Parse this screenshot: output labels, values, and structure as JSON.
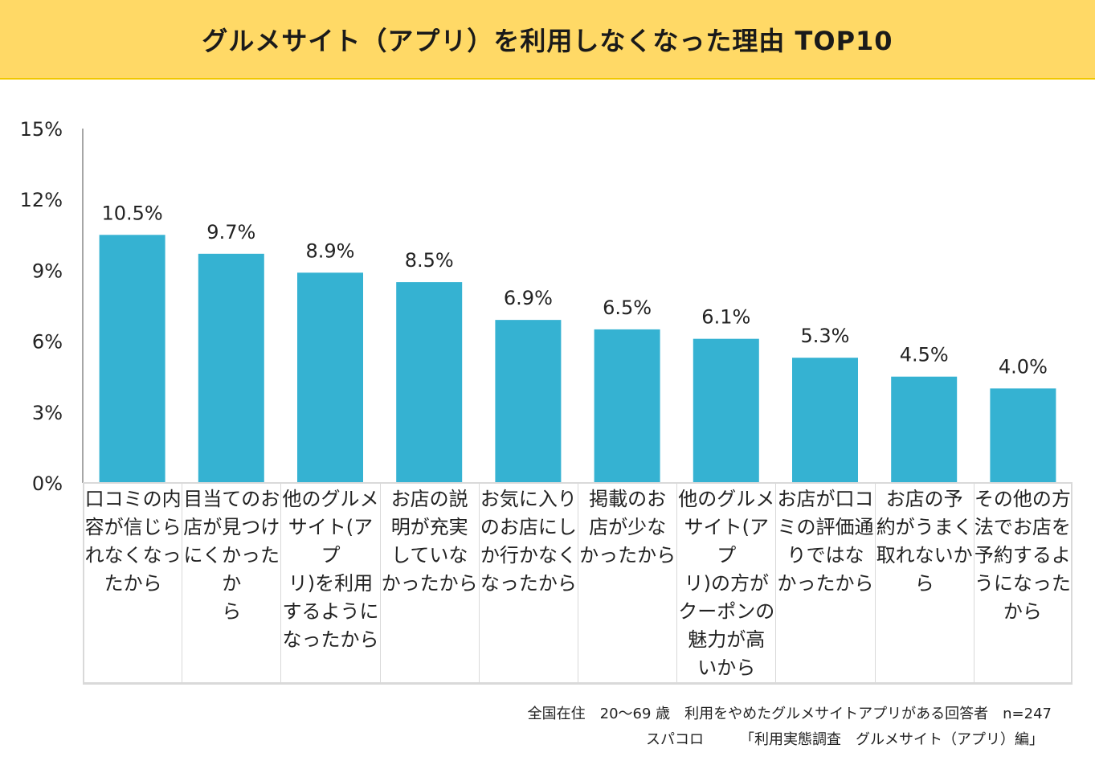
{
  "chart_data": {
    "type": "bar",
    "title": "グルメサイト（アプリ）を利用しなくなった理由 TOP10",
    "categories": [
      "口コミの内容が信じられなくなったから",
      "目当てのお店が見つけにくかったから",
      "他のグルメサイト(アプリ)を利用するようになったから",
      "お店の説明が充実していなかったから",
      "お気に入りのお店にしか行かなくなったから",
      "掲載のお店が少なかったから",
      "他のグルメサイト(アプリ)の方がクーポンの魅力が高いから",
      "お店が口コミの評価通りではなかったから",
      "お店の予約がうまく取れないから",
      "その他の方法でお店を予約するようになったから"
    ],
    "category_lines": [
      [
        "口コミの内",
        "容が信じら",
        "れなくなっ",
        "たから"
      ],
      [
        "目当てのお",
        "店が見つけ",
        "にくかったか",
        "ら"
      ],
      [
        "他のグルメ",
        "サイト(アプ",
        "リ)を利用",
        "するように",
        "なったから"
      ],
      [
        "お店の説",
        "明が充実",
        "していな",
        "かったから"
      ],
      [
        "お気に入り",
        "のお店にし",
        "か行かなく",
        "なったから"
      ],
      [
        "掲載のお",
        "店が少な",
        "かったから"
      ],
      [
        "他のグルメ",
        "サイト(アプ",
        "リ)の方が",
        "クーポンの",
        "魅力が高",
        "いから"
      ],
      [
        "お店が口コ",
        "ミの評価通",
        "りではな",
        "かったから"
      ],
      [
        "お店の予",
        "約がうまく",
        "取れないか",
        "ら"
      ],
      [
        "その他の方",
        "法でお店を",
        "予約するよ",
        "うになった",
        "から"
      ]
    ],
    "values": [
      10.5,
      9.7,
      8.9,
      8.5,
      6.9,
      6.5,
      6.1,
      5.3,
      4.5,
      4.0
    ],
    "data_labels": [
      "10.5%",
      "9.7%",
      "8.9%",
      "8.5%",
      "6.9%",
      "6.5%",
      "6.1%",
      "5.3%",
      "4.5%",
      "4.0%"
    ],
    "ylim": [
      0,
      15
    ],
    "yticks": [
      0,
      3,
      6,
      9,
      12,
      15
    ],
    "ytick_labels": [
      "0%",
      "3%",
      "6%",
      "9%",
      "12%",
      "15%"
    ],
    "xlabel": "",
    "ylabel": "",
    "grid": false,
    "colors": {
      "bar": "#35b2d2",
      "banner": "#ffd966",
      "banner_border": "#f0c800",
      "axis": "#a6a6a6",
      "table_border": "#d9d9d9"
    }
  },
  "source": {
    "line1": "全国在住　20～69 歳　利用をやめたグルメサイトアプリがある回答者　n=247",
    "line2": "スパコロ　　　「利用実態調査　グルメサイト（アプリ）編」"
  }
}
